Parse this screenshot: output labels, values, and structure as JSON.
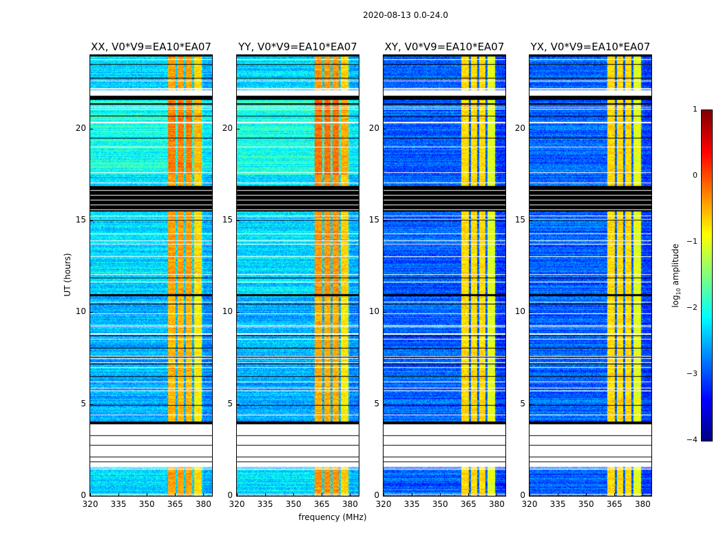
{
  "suptitle": "2020-08-13 0.0-24.0",
  "chart_data": {
    "type": "heatmap",
    "xlabel": "frequency (MHz)",
    "ylabel": "UT (hours)",
    "xlim": [
      320,
      384.6
    ],
    "ylim": [
      0,
      24
    ],
    "xticks": [
      320,
      335,
      350,
      365,
      380
    ],
    "yticks": [
      0,
      5,
      10,
      15,
      20
    ],
    "panels": [
      {
        "title": "XX, V0*V9=EA10*EA07",
        "background_log_amp": -2.3,
        "band_log_amp": -0.4
      },
      {
        "title": "YY, V0*V9=EA10*EA07",
        "background_log_amp": -2.3,
        "band_log_amp": -0.35
      },
      {
        "title": "XY, V0*V9=EA10*EA07",
        "background_log_amp": -2.9,
        "band_log_amp": -0.7
      },
      {
        "title": "YX, V0*V9=EA10*EA07",
        "background_log_amp": -2.9,
        "band_log_amp": -0.7
      }
    ],
    "bright_bands_mhz": [
      [
        361,
        365
      ],
      [
        366,
        369.5
      ],
      [
        370.5,
        374
      ],
      [
        375,
        379
      ]
    ],
    "blank_ranges_hours": [
      [
        1.6,
        3.9
      ],
      [
        21.8,
        22.1
      ]
    ],
    "flagged_ranges_hours": [
      [
        15.5,
        16.9
      ],
      [
        3.9,
        4.05
      ],
      [
        10.9,
        11.0
      ],
      [
        21.6,
        21.8
      ]
    ],
    "colorbar": {
      "label_prefix": "log",
      "label_sub": "10",
      "label_suffix": " amplitude",
      "range": [
        -4,
        1
      ],
      "ticks": [
        "1",
        "0",
        "−1",
        "−2",
        "−3",
        "−4"
      ],
      "tick_values": [
        1,
        0,
        -1,
        -2,
        -3,
        -4
      ],
      "colormap": "jet"
    }
  }
}
